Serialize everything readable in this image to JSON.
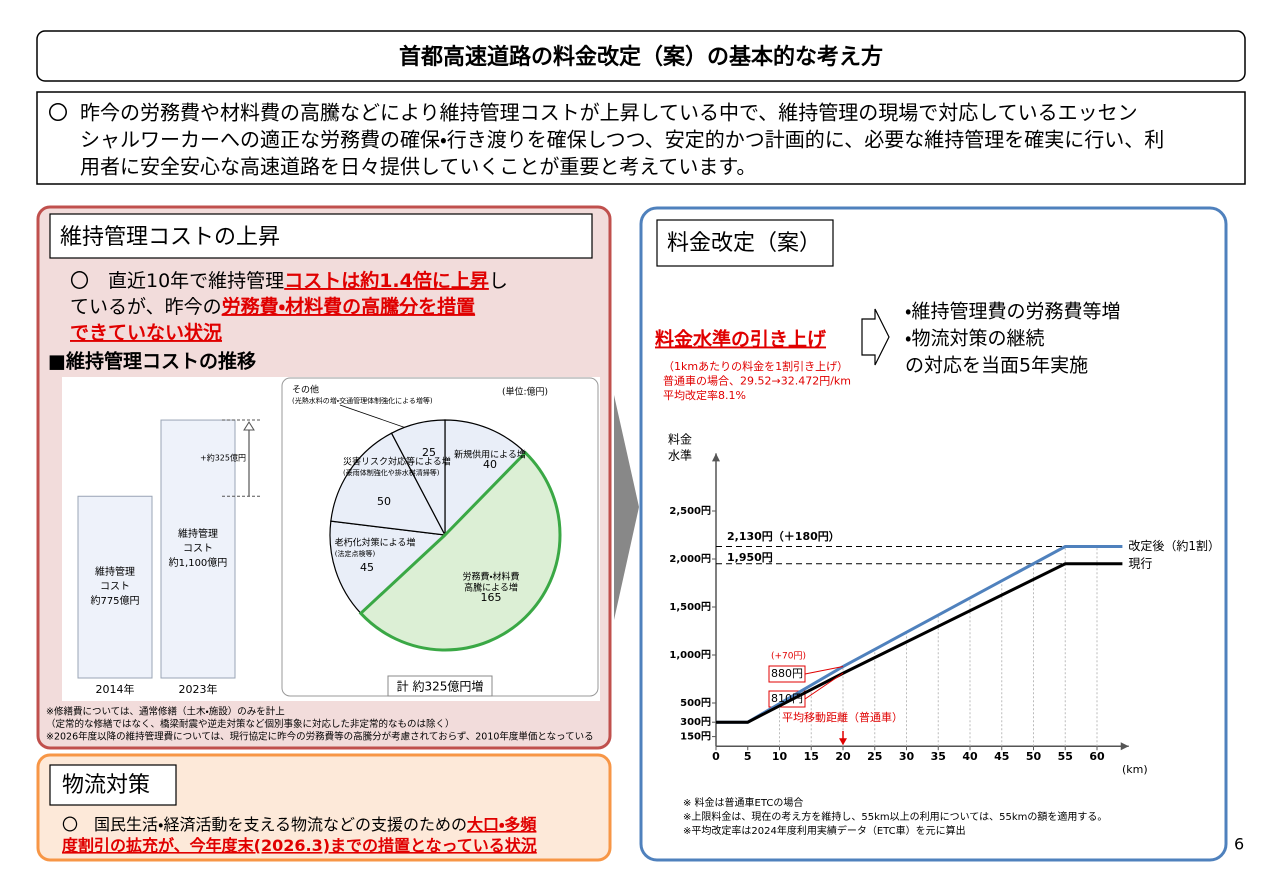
{
  "header": {
    "title": "首都高速道路の料金改定（案）の基本的な考え方"
  },
  "intro": {
    "marker": "〇",
    "lines": [
      "昨今の労務費や材料費の高騰などにより維持管理コストが上昇している中で、維持管理の現場で対応しているエッセン",
      "シャルワーカーへの適正な労務費の確保・行き渡りを確保しつつ、安定的かつ計画的に、必要な維持管理を確実に行い、利",
      "用者に安全安心な高速道路を日々提供していくことが重要と考えています。"
    ]
  },
  "cost_panel": {
    "title": "維持管理コストの上昇",
    "lines": [
      [
        {
          "text": "〇　直近10年で維持管理"
        },
        {
          "text": "コストは約1.4倍に上昇",
          "emphasis": true
        },
        {
          "text": "し"
        }
      ],
      [
        {
          "text": "ているが、昨今の"
        },
        {
          "text": "労務費・材料費の高騰分を措置",
          "emphasis": true
        }
      ],
      [
        {
          "text": "できていない状況",
          "emphasis": true
        }
      ]
    ],
    "chart_title": "■維持管理コストの推移",
    "bar_chart": {
      "type": "bar",
      "categories": [
        "2014年",
        "2023年"
      ],
      "values": [
        775,
        1100
      ],
      "bar_text": [
        [
          "維持管理",
          "コスト"
        ],
        [
          "維持管理",
          "コスト"
        ]
      ],
      "value_labels": [
        "約775億円",
        "約1,100億円"
      ],
      "color": "#eef2fa",
      "difference_label": "+約325億円"
    },
    "pie_chart": {
      "type": "pie",
      "unit_label": "(単位:億円)",
      "labels": [
        [
          "新規供用による増"
        ],
        [
          "労務費・材料費",
          "高騰による増"
        ],
        [
          "老朽化対策による増"
        ],
        [
          "災害リスク対応等による増"
        ],
        [
          "その他"
        ]
      ],
      "sublabels": [
        null,
        null,
        "(法定点検等)",
        "(豪雨体制強化や排水桝清掃等)",
        "(光熱水料の増・交通管理体制強化による増等)"
      ],
      "values": [
        40,
        165,
        45,
        50,
        25
      ],
      "colors": [
        "#e9eef8",
        "#dcefd5",
        "#e9eef8",
        "#e9eef8",
        "#e9eef8"
      ],
      "border_colors": [
        "#000000",
        "#3aa845",
        "#000000",
        "#000000",
        "#000000"
      ],
      "total_label": "計 約325億円増"
    },
    "notes": [
      "※修繕費については、通常修繕（土木・施設）のみを計上",
      "（定常的な修繕ではなく、橋梁耐震や逆走対策など個別事象に対応した非定常的なものは除く）",
      "※2026年度以降の維持管理費については、現行協定に昨今の労務費等の高騰分が考慮されておらず、2010年度単価となっている"
    ]
  },
  "logistics_panel": {
    "title": "物流対策",
    "lines": [
      [
        {
          "text": "〇　国民生活・経済活動を支える物流などの支援のための"
        },
        {
          "text": "大口・多頻",
          "emphasis": true
        }
      ],
      [
        {
          "text": "度割引の拡充が、今年度末(2026.3)までの措置となっている状況",
          "emphasis": true
        }
      ]
    ]
  },
  "fee_panel": {
    "title": "料金改定（案）",
    "headline": "料金水準の引き上げ",
    "details": [
      "（1kmあたりの料金を1割引き上げ）",
      "普通車の場合、29.52→32.472円/km",
      "平均改定率8.1%"
    ],
    "measures": [
      "・維持管理費の労務費等増",
      "・物流対策の継続",
      "の対応を当面5年実施"
    ],
    "chart": {
      "type": "line",
      "y_label": [
        "料金",
        "水準"
      ],
      "x_unit": "(km)",
      "x": [
        0,
        5,
        20,
        55,
        64
      ],
      "series": [
        {
          "name": "改定後（約1割）",
          "color": "#4f81bd",
          "values": [
            300,
            300,
            880,
            2130,
            2130
          ]
        },
        {
          "name": "現行",
          "color": "#000000",
          "values": [
            300,
            300,
            810,
            1950,
            1950
          ]
        }
      ],
      "xlim": [
        0,
        65
      ],
      "xticks": [
        0,
        5,
        10,
        15,
        20,
        25,
        30,
        35,
        40,
        45,
        50,
        55,
        60
      ],
      "ylim": [
        50,
        3100
      ],
      "yticks": [
        {
          "value": 150,
          "label": "150円"
        },
        {
          "value": 300,
          "label": "300円"
        },
        {
          "value": 500,
          "label": "500円"
        },
        {
          "value": 1000,
          "label": "1,000円"
        },
        {
          "value": 1500,
          "label": "1,500円"
        },
        {
          "value": 2000,
          "label": "2,000円"
        },
        {
          "value": 2500,
          "label": "2,500円"
        }
      ],
      "grid": "x",
      "annotations": {
        "revised_level": "2,130円（＋180円）",
        "current_level": "1,950円",
        "increase": "(+70円)",
        "revised_avg": "880円",
        "current_avg": "810円",
        "avg_distance": "平均移動距離（普通車）"
      },
      "avg_distance_x": 20
    },
    "notes": [
      "※ 料金は普通車ETCの場合",
      "※上限料金は、現在の考え方を維持し、55km以上の利用については、55kmの額を適用する。",
      "※平均改定率は2024年度利用実績データ（ETC車）を元に算出"
    ]
  },
  "page_number": 6
}
